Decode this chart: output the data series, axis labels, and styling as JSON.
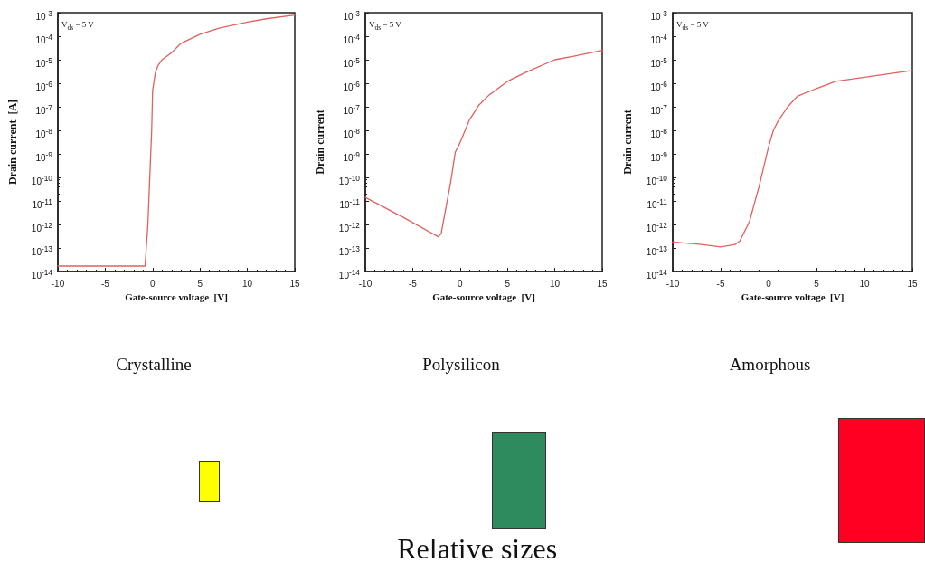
{
  "chart_data": [
    {
      "type": "line",
      "xlabel": "Gate-source voltage  [V]",
      "ylabel": "Drain current  [A]",
      "annotations": [
        "V$_{ds}$ = 5 V",
        "Crystalline"
      ],
      "series": [
        {
          "color": "#e06060",
          "x": [
            -10,
            -5,
            -0.8,
            -0.5,
            -0.3,
            -0.1,
            0,
            0.3,
            0.6,
            1,
            2,
            3,
            5,
            7,
            10,
            12,
            15
          ],
          "values": [
            1.7e-14,
            1.7e-14,
            1.7e-14,
            1e-12,
            1e-10,
            1e-08,
            5e-07,
            3e-06,
            6e-06,
            1e-05,
            2e-05,
            5e-05,
            0.00012,
            0.00022,
            0.0004,
            0.00055,
            0.0008
          ]
        }
      ],
      "xlim": [
        -10,
        15
      ],
      "xticks": [
        -10,
        -5,
        0,
        5,
        10,
        15
      ],
      "ylim": [
        1e-14,
        0.001
      ],
      "log": "y",
      "grid": false,
      "yticks": [
        {
          "value": 1e-14,
          "label": "10$^{-14}$"
        },
        {
          "value": 1e-13,
          "label": "10$^{-13}$"
        },
        {
          "value": 1e-12,
          "label": "10$^{-12}$"
        },
        {
          "value": 1e-11,
          "label": "10$^{-11}$"
        },
        {
          "value": 1e-10,
          "label": "10$^{-10}$"
        },
        {
          "value": 1e-09,
          "label": "10$^{-9}$"
        },
        {
          "value": 1e-08,
          "label": "10$^{-8}$"
        },
        {
          "value": 1e-07,
          "label": "10$^{-7}$"
        },
        {
          "value": 1e-06,
          "label": "10$^{-6}$"
        },
        {
          "value": 1e-05,
          "label": "10$^{-5}$"
        },
        {
          "value": 0.0001,
          "label": "10$^{-4}$"
        },
        {
          "value": 0.001,
          "label": "10$^{-3}$"
        }
      ]
    },
    {
      "type": "line",
      "xlabel": "Gate-source voltage  [V]",
      "ylabel": "Drain current",
      "annotations": [
        "V$_{ds}$ = 5 V",
        "Polysilicon",
        "Relative sizes"
      ],
      "series": [
        {
          "color": "#e06060",
          "x": [
            -10,
            -6,
            -2.3,
            -2,
            -1.5,
            -1,
            -0.5,
            0,
            1,
            2,
            3,
            5,
            7,
            10,
            12,
            15
          ],
          "values": [
            1.4e-11,
            2e-12,
            3e-13,
            4e-13,
            5e-12,
            6e-11,
            1.2e-09,
            3e-09,
            2.8e-08,
            1.2e-07,
            3e-07,
            1.2e-06,
            3e-06,
            1e-05,
            1.4e-05,
            2.5e-05
          ]
        }
      ],
      "xlim": [
        -10,
        15
      ],
      "xticks": [
        -10,
        -5,
        0,
        5,
        10,
        15
      ],
      "ylim": [
        1e-14,
        0.001
      ],
      "log": "y",
      "grid": false,
      "yticks": [
        {
          "value": 1e-14,
          "label": "10$^{-14}$"
        },
        {
          "value": 1e-13,
          "label": "10$^{-13}$"
        },
        {
          "value": 1e-12,
          "label": "10$^{-12}$"
        },
        {
          "value": 1e-11,
          "label": "10$^{-11}$"
        },
        {
          "value": 1e-10,
          "label": "10$^{-10}$"
        },
        {
          "value": 1e-09,
          "label": "10$^{-9}$"
        },
        {
          "value": 1e-08,
          "label": "10$^{-8}$"
        },
        {
          "value": 1e-07,
          "label": "10$^{-7}$"
        },
        {
          "value": 1e-06,
          "label": "10$^{-6}$"
        },
        {
          "value": 1e-05,
          "label": "10$^{-5}$"
        },
        {
          "value": 0.0001,
          "label": "10$^{-4}$"
        },
        {
          "value": 0.001,
          "label": "10$^{-3}$"
        }
      ]
    },
    {
      "type": "line",
      "xlabel": "Gate-source voltage  [V]",
      "ylabel": "Drain current",
      "annotations": [
        "V$_{ds}$ = 5 V",
        "Amorphous"
      ],
      "series": [
        {
          "color": "#e06060",
          "x": [
            -10,
            -7,
            -5,
            -3.5,
            -3,
            -2,
            -1,
            0,
            0.5,
            1,
            2,
            3,
            5,
            7,
            10,
            15
          ],
          "values": [
            1.8e-13,
            1.4e-13,
            1.1e-13,
            1.4e-13,
            2e-13,
            1.3e-12,
            4e-11,
            2e-09,
            1e-08,
            2.5e-08,
            1e-07,
            2.8e-07,
            6e-07,
            1.2e-06,
            1.8e-06,
            3.5e-06
          ]
        }
      ],
      "xlim": [
        -10,
        15
      ],
      "xticks": [
        -10,
        -5,
        0,
        5,
        10,
        15
      ],
      "ylim": [
        1e-14,
        0.001
      ],
      "log": "y",
      "grid": false,
      "yticks": [
        {
          "value": 1e-14,
          "label": "10$^{-14}$"
        },
        {
          "value": 1e-13,
          "label": "10$^{-13}$"
        },
        {
          "value": 1e-12,
          "label": "10$^{-12}$"
        },
        {
          "value": 1e-11,
          "label": "10$^{-11}$"
        },
        {
          "value": 1e-10,
          "label": "10$^{-10}$"
        },
        {
          "value": 1e-09,
          "label": "10$^{-9}$"
        },
        {
          "value": 1e-08,
          "label": "10$^{-8}$"
        },
        {
          "value": 1e-07,
          "label": "10$^{-7}$"
        },
        {
          "value": 1e-06,
          "label": "10$^{-6}$"
        },
        {
          "value": 1e-05,
          "label": "10$^{-5}$"
        },
        {
          "value": 0.0001,
          "label": "10$^{-4}$"
        },
        {
          "value": 0.001,
          "label": "10$^{-3}$"
        }
      ]
    }
  ]
}
